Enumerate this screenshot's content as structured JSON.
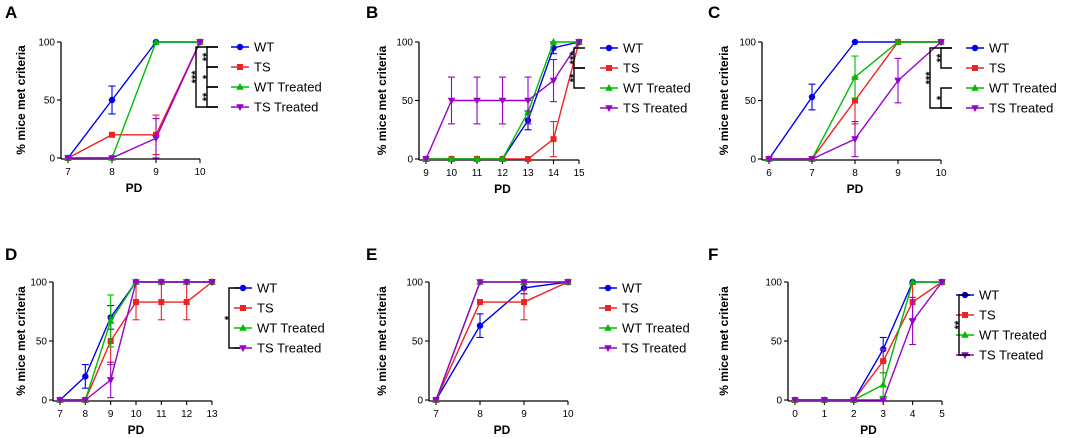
{
  "chart_data": [
    {
      "panel": "A",
      "type": "line",
      "xlabel": "PD",
      "ylabel": "% mice met criteria",
      "xlim": [
        7,
        10
      ],
      "xticks": [
        "7",
        "8",
        "9",
        "10"
      ],
      "ylim": [
        0,
        100
      ],
      "yticks": [
        "0",
        "50",
        "100"
      ],
      "series": [
        {
          "name": "WT",
          "color": "#0000ee",
          "marker": "circle",
          "x": [
            7,
            8,
            9,
            10
          ],
          "y": [
            0,
            50,
            100,
            100
          ],
          "err": [
            0,
            12,
            0,
            0
          ]
        },
        {
          "name": "TS",
          "color": "#ee2222",
          "marker": "square",
          "x": [
            7,
            8,
            9,
            10
          ],
          "y": [
            0,
            20,
            20,
            100
          ],
          "err": [
            0,
            0,
            17,
            0
          ]
        },
        {
          "name": "WT Treated",
          "color": "#00bb00",
          "marker": "triangle",
          "x": [
            7,
            8,
            9,
            10
          ],
          "y": [
            0,
            0,
            100,
            100
          ],
          "err": [
            0,
            0,
            0,
            0
          ]
        },
        {
          "name": "TS Treated",
          "color": "#9900cc",
          "marker": "triangle-down",
          "x": [
            7,
            8,
            9,
            10
          ],
          "y": [
            0,
            0,
            17,
            100
          ],
          "err": [
            0,
            0,
            17,
            0
          ]
        }
      ],
      "significance": [
        {
          "from": "WT",
          "to": "TS",
          "label": "**"
        },
        {
          "from": "TS",
          "to": "WT Treated",
          "label": "*"
        },
        {
          "from": "WT Treated",
          "to": "TS Treated",
          "label": "**"
        },
        {
          "from": "WT",
          "to": "TS Treated",
          "label": "***"
        }
      ]
    },
    {
      "panel": "B",
      "type": "line",
      "xlabel": "PD",
      "ylabel": "% mice met criteria",
      "xlim": [
        9,
        15
      ],
      "xticks": [
        "9",
        "10",
        "11",
        "12",
        "13",
        "14",
        "15"
      ],
      "ylim": [
        0,
        100
      ],
      "yticks": [
        "0",
        "50",
        "100"
      ],
      "series": [
        {
          "name": "WT",
          "color": "#0000ee",
          "marker": "circle",
          "x": [
            9,
            10,
            11,
            12,
            13,
            14,
            15
          ],
          "y": [
            0,
            0,
            0,
            0,
            33,
            95,
            100
          ],
          "err": [
            0,
            0,
            0,
            0,
            8,
            5,
            0
          ]
        },
        {
          "name": "TS",
          "color": "#ee2222",
          "marker": "square",
          "x": [
            9,
            10,
            11,
            12,
            13,
            14,
            15
          ],
          "y": [
            0,
            0,
            0,
            0,
            0,
            17,
            100
          ],
          "err": [
            0,
            0,
            0,
            0,
            0,
            15,
            0
          ]
        },
        {
          "name": "WT Treated",
          "color": "#00bb00",
          "marker": "triangle",
          "x": [
            9,
            10,
            11,
            12,
            13,
            14,
            15
          ],
          "y": [
            0,
            0,
            0,
            0,
            40,
            100,
            100
          ],
          "err": [
            0,
            0,
            0,
            0,
            10,
            0,
            0
          ]
        },
        {
          "name": "TS Treated",
          "color": "#9900cc",
          "marker": "triangle-down",
          "x": [
            9,
            10,
            11,
            12,
            13,
            14,
            15
          ],
          "y": [
            0,
            50,
            50,
            50,
            50,
            67,
            100
          ],
          "err": [
            0,
            20,
            20,
            20,
            20,
            18,
            0
          ]
        }
      ],
      "significance": [
        {
          "from": "WT",
          "to": "TS",
          "label": "***"
        },
        {
          "from": "TS",
          "to": "WT Treated",
          "label": "**"
        }
      ]
    },
    {
      "panel": "C",
      "type": "line",
      "xlabel": "PD",
      "ylabel": "% mice met criteria",
      "xlim": [
        6,
        10
      ],
      "xticks": [
        "6",
        "7",
        "8",
        "9",
        "10"
      ],
      "ylim": [
        0,
        100
      ],
      "yticks": [
        "0",
        "50",
        "100"
      ],
      "series": [
        {
          "name": "WT",
          "color": "#0000ee",
          "marker": "circle",
          "x": [
            6,
            7,
            8,
            9,
            10
          ],
          "y": [
            0,
            53,
            100,
            100,
            100
          ],
          "err": [
            0,
            11,
            0,
            0,
            0
          ]
        },
        {
          "name": "TS",
          "color": "#ee2222",
          "marker": "square",
          "x": [
            6,
            7,
            8,
            9,
            10
          ],
          "y": [
            0,
            0,
            50,
            100,
            100
          ],
          "err": [
            0,
            0,
            20,
            0,
            0
          ]
        },
        {
          "name": "WT Treated",
          "color": "#00bb00",
          "marker": "triangle",
          "x": [
            6,
            7,
            8,
            9,
            10
          ],
          "y": [
            0,
            0,
            70,
            100,
            100
          ],
          "err": [
            0,
            0,
            18,
            0,
            0
          ]
        },
        {
          "name": "TS Treated",
          "color": "#9900cc",
          "marker": "triangle-down",
          "x": [
            6,
            7,
            8,
            9,
            10
          ],
          "y": [
            0,
            0,
            17,
            67,
            100
          ],
          "err": [
            0,
            0,
            15,
            19,
            0
          ]
        }
      ],
      "significance": [
        {
          "from": "WT",
          "to": "TS",
          "label": "**"
        },
        {
          "from": "WT Treated",
          "to": "TS Treated",
          "label": "*"
        },
        {
          "from": "WT",
          "to": "TS Treated",
          "label": "***"
        }
      ]
    },
    {
      "panel": "D",
      "type": "line",
      "xlabel": "PD",
      "ylabel": "% mice met criteria",
      "xlim": [
        7,
        13
      ],
      "xticks": [
        "7",
        "8",
        "9",
        "10",
        "11",
        "12",
        "13"
      ],
      "ylim": [
        0,
        100
      ],
      "yticks": [
        "0",
        "50",
        "100"
      ],
      "series": [
        {
          "name": "WT",
          "color": "#0000ee",
          "marker": "circle",
          "x": [
            7,
            8,
            9,
            10,
            11,
            12,
            13
          ],
          "y": [
            0,
            20,
            70,
            100,
            100,
            100,
            100
          ],
          "err": [
            0,
            10,
            10,
            0,
            0,
            0,
            0
          ]
        },
        {
          "name": "TS",
          "color": "#ee2222",
          "marker": "square",
          "x": [
            7,
            8,
            9,
            10,
            11,
            12,
            13
          ],
          "y": [
            0,
            0,
            50,
            83,
            83,
            83,
            100
          ],
          "err": [
            0,
            0,
            20,
            15,
            15,
            15,
            0
          ]
        },
        {
          "name": "WT Treated",
          "color": "#00bb00",
          "marker": "triangle",
          "x": [
            7,
            8,
            9,
            10,
            11,
            12,
            13
          ],
          "y": [
            0,
            0,
            67,
            100,
            100,
            100,
            100
          ],
          "err": [
            0,
            0,
            22,
            0,
            0,
            0,
            0
          ]
        },
        {
          "name": "TS Treated",
          "color": "#9900cc",
          "marker": "triangle-down",
          "x": [
            7,
            8,
            9,
            10,
            11,
            12,
            13
          ],
          "y": [
            0,
            0,
            17,
            100,
            100,
            100,
            100
          ],
          "err": [
            0,
            0,
            15,
            0,
            0,
            0,
            0
          ]
        }
      ],
      "significance": [
        {
          "from": "WT",
          "to": "TS Treated",
          "label": "*"
        }
      ]
    },
    {
      "panel": "E",
      "type": "line",
      "xlabel": "PD",
      "ylabel": "% mice met criteria",
      "xlim": [
        7,
        10
      ],
      "xticks": [
        "7",
        "8",
        "9",
        "10"
      ],
      "ylim": [
        0,
        100
      ],
      "yticks": [
        "0",
        "50",
        "100"
      ],
      "series": [
        {
          "name": "WT",
          "color": "#0000ee",
          "marker": "circle",
          "x": [
            7,
            8,
            9,
            10
          ],
          "y": [
            0,
            63,
            95,
            100
          ],
          "err": [
            0,
            10,
            5,
            0
          ]
        },
        {
          "name": "TS",
          "color": "#ee2222",
          "marker": "square",
          "x": [
            7,
            8,
            9,
            10
          ],
          "y": [
            0,
            83,
            83,
            100
          ],
          "err": [
            0,
            0,
            15,
            0
          ]
        },
        {
          "name": "WT Treated",
          "color": "#00bb00",
          "marker": "triangle",
          "x": [
            7,
            8,
            9,
            10
          ],
          "y": [
            0,
            100,
            100,
            100
          ],
          "err": [
            0,
            0,
            0,
            0
          ]
        },
        {
          "name": "TS Treated",
          "color": "#9900cc",
          "marker": "triangle-down",
          "x": [
            7,
            8,
            9,
            10
          ],
          "y": [
            0,
            100,
            100,
            100
          ],
          "err": [
            0,
            0,
            0,
            0
          ]
        }
      ],
      "significance": []
    },
    {
      "panel": "F",
      "type": "line",
      "xlabel": "PD",
      "ylabel": "% mice met criteria",
      "xlim": [
        0,
        5
      ],
      "xticks": [
        "0",
        "1",
        "2",
        "3",
        "4",
        "5"
      ],
      "ylim": [
        0,
        100
      ],
      "yticks": [
        "0",
        "50",
        "100"
      ],
      "series": [
        {
          "name": "WT",
          "color": "#0000ee",
          "marker": "circle",
          "x": [
            0,
            1,
            2,
            3,
            4,
            5
          ],
          "y": [
            0,
            0,
            0,
            43,
            100,
            100
          ],
          "err": [
            0,
            0,
            0,
            10,
            0,
            0
          ]
        },
        {
          "name": "TS",
          "color": "#ee2222",
          "marker": "square",
          "x": [
            0,
            1,
            2,
            3,
            4,
            5
          ],
          "y": [
            0,
            0,
            0,
            33,
            83,
            100
          ],
          "err": [
            0,
            0,
            0,
            10,
            15,
            0
          ]
        },
        {
          "name": "WT Treated",
          "color": "#00bb00",
          "marker": "triangle",
          "x": [
            0,
            1,
            2,
            3,
            4,
            5
          ],
          "y": [
            0,
            0,
            0,
            13,
            100,
            100
          ],
          "err": [
            0,
            0,
            0,
            10,
            0,
            0
          ]
        },
        {
          "name": "TS Treated",
          "color": "#9900cc",
          "marker": "triangle-down",
          "x": [
            0,
            1,
            2,
            3,
            4,
            5
          ],
          "y": [
            0,
            0,
            0,
            0,
            67,
            100
          ],
          "err": [
            0,
            0,
            0,
            0,
            20,
            0
          ]
        }
      ],
      "significance": [
        {
          "from": "WT",
          "to": "TS Treated",
          "label": "**"
        }
      ]
    }
  ]
}
